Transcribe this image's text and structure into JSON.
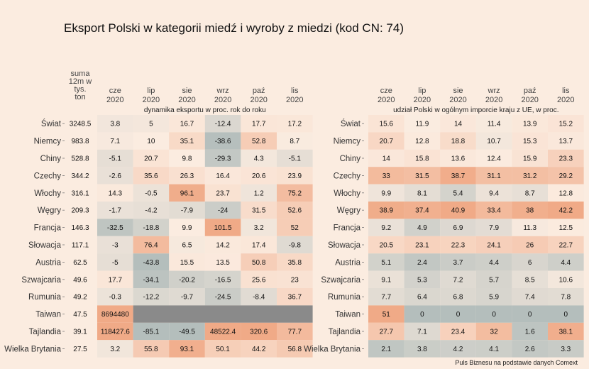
{
  "title": "Eksport Polski w kategorii miedź i wyroby z miedzi (kod CN: 74)",
  "credit": "Puls Biznesu na podstawie danych Comext",
  "colors": {
    "background": "#fbece0",
    "grey_na": "#8a8a8a"
  },
  "chart_data": [
    {
      "type": "heatmap",
      "title": "dynamika eksportu w proc. rok do roku",
      "sum_header": [
        "suma",
        "12m w",
        "tys.",
        "ton"
      ],
      "columns": [
        [
          "cze",
          "2020"
        ],
        [
          "lip",
          "2020"
        ],
        [
          "sie",
          "2020"
        ],
        [
          "wrz",
          "2020"
        ],
        [
          "paź",
          "2020"
        ],
        [
          "lis",
          "2020"
        ]
      ],
      "rows": [
        "Świat",
        "Niemcy",
        "Chiny",
        "Czechy",
        "Włochy",
        "Węgry",
        "Francja",
        "Słowacja",
        "Austria",
        "Szwajcaria",
        "Rumunia",
        "Taiwan",
        "Tajlandia",
        "Wielka Brytania"
      ],
      "sum": [
        "3248.5",
        "983.8",
        "528.8",
        "344.2",
        "316.1",
        "209.3",
        "146.3",
        "117.1",
        "62.5",
        "49.6",
        "49.2",
        "47.5",
        "39.1",
        "27.5"
      ],
      "values": [
        [
          "3.8",
          "5",
          "16.7",
          "-12.4",
          "17.7",
          "17.2"
        ],
        [
          "7.1",
          "10",
          "35.1",
          "-38.6",
          "52.8",
          "8.7"
        ],
        [
          "-5.1",
          "20.7",
          "9.8",
          "-29.3",
          "4.3",
          "-5.1"
        ],
        [
          "-2.6",
          "35.6",
          "26.3",
          "16.4",
          "20.6",
          "23.9"
        ],
        [
          "14.3",
          "-0.5",
          "96.1",
          "23.7",
          "1.2",
          "75.2"
        ],
        [
          "-1.7",
          "-4.2",
          "-7.9",
          "-24",
          "31.5",
          "52.6"
        ],
        [
          "-32.5",
          "-18.8",
          "9.9",
          "101.5",
          "3.2",
          "52"
        ],
        [
          "-3",
          "76.4",
          "6.5",
          "14.2",
          "17.4",
          "-9.8"
        ],
        [
          "-5",
          "-43.8",
          "15.5",
          "13.5",
          "50.8",
          "35.8"
        ],
        [
          "17.7",
          "-34.1",
          "-20.2",
          "-16.5",
          "25.6",
          "23"
        ],
        [
          "-0.3",
          "-12.2",
          "-9.7",
          "-24.5",
          "-8.4",
          "36.7"
        ],
        [
          "8694480",
          null,
          null,
          null,
          null,
          null
        ],
        [
          "118427.6",
          "-85.1",
          "-49.5",
          "48522.4",
          "320.6",
          "77.7"
        ],
        [
          "3.2",
          "55.8",
          "93.1",
          "50.1",
          "44.2",
          "56.8"
        ]
      ]
    },
    {
      "type": "heatmap",
      "title": "udział Polski w ogólnym imporcie kraju z UE, w proc.",
      "columns": [
        [
          "cze",
          "2020"
        ],
        [
          "lip",
          "2020"
        ],
        [
          "sie",
          "2020"
        ],
        [
          "wrz",
          "2020"
        ],
        [
          "paź",
          "2020"
        ],
        [
          "lis",
          "2020"
        ]
      ],
      "rows": [
        "Świat",
        "Niemcy",
        "Chiny",
        "Czechy",
        "Włochy",
        "Węgry",
        "Francja",
        "Słowacja",
        "Austria",
        "Szwajcaria",
        "Rumunia",
        "Taiwan",
        "Tajlandia",
        "Wielka Brytania"
      ],
      "values": [
        [
          "15.6",
          "11.9",
          "14",
          "11.4",
          "13.9",
          "15.2"
        ],
        [
          "20.7",
          "12.8",
          "18.8",
          "10.7",
          "15.3",
          "13.7"
        ],
        [
          "14",
          "15.8",
          "13.6",
          "12.4",
          "15.9",
          "23.3"
        ],
        [
          "33",
          "31.5",
          "38.7",
          "31.1",
          "31.2",
          "29.2"
        ],
        [
          "9.9",
          "8.1",
          "5.4",
          "9.4",
          "8.7",
          "12.8"
        ],
        [
          "38.9",
          "37.4",
          "40.9",
          "33.4",
          "38",
          "42.2"
        ],
        [
          "9.2",
          "4.9",
          "6.9",
          "7.9",
          "11.3",
          "12.5"
        ],
        [
          "20.5",
          "23.1",
          "22.3",
          "24.1",
          "26",
          "22.7"
        ],
        [
          "5.1",
          "2.4",
          "3.7",
          "4.4",
          "6",
          "4.4"
        ],
        [
          "9.1",
          "5.3",
          "7.2",
          "5.7",
          "8.5",
          "10.6"
        ],
        [
          "7.7",
          "6.4",
          "6.8",
          "5.9",
          "7.4",
          "7.8"
        ],
        [
          "51",
          "0",
          "0",
          "0",
          "0",
          "0"
        ],
        [
          "27.7",
          "7.1",
          "23.4",
          "32",
          "1.6",
          "38.1"
        ],
        [
          "2.1",
          "3.8",
          "4.2",
          "4.1",
          "2.6",
          "3.3"
        ]
      ]
    }
  ]
}
